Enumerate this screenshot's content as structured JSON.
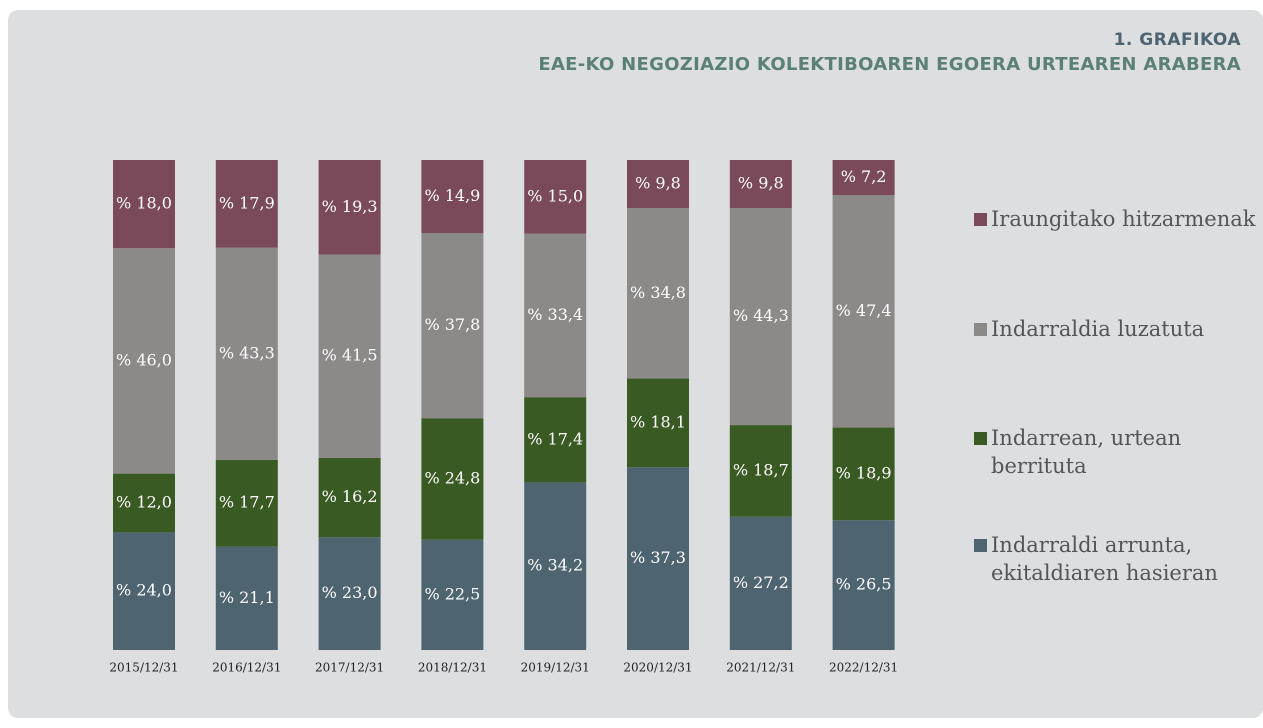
{
  "chart_data": {
    "type": "stacked_bar",
    "title": "1. GRAFIKOA",
    "subtitle": "EAE-KO NEGOZIAZIO KOLEKTIBOAREN EGOERA URTEAREN ARABERA",
    "categories": [
      "2015/12/31",
      "2016/12/31",
      "2017/12/31",
      "2018/12/31",
      "2019/12/31",
      "2020/12/31",
      "2021/12/31",
      "2022/12/31"
    ],
    "ylim": [
      0,
      100
    ],
    "series": [
      {
        "name": "Indarraldi arrunta, ekitaldiaren hasieran",
        "color": "#4e6470",
        "values": [
          24.0,
          21.1,
          23.0,
          22.5,
          34.2,
          37.3,
          27.2,
          26.5
        ],
        "value_labels": [
          "% 24,0",
          "% 21,1",
          "% 23,0",
          "% 22,5",
          "% 34,2",
          "% 37,3",
          "% 27,2",
          "% 26,5"
        ]
      },
      {
        "name": "Indarrean, urtean berrituta",
        "color": "#3a5a24",
        "values": [
          12.0,
          17.7,
          16.2,
          24.8,
          17.4,
          18.1,
          18.7,
          18.9
        ],
        "value_labels": [
          "% 12,0",
          "% 17,7",
          "% 16,2",
          "% 24,8",
          "% 17,4",
          "% 18,1",
          "% 18,7",
          "% 18,9"
        ]
      },
      {
        "name": "Indarraldia luzatuta",
        "color": "#8c8989",
        "values": [
          46.0,
          43.3,
          41.5,
          37.8,
          33.4,
          34.8,
          44.3,
          47.4
        ],
        "value_labels": [
          "% 46,0",
          "% 43,3",
          "% 41,5",
          "% 37,8",
          "% 33,4",
          "% 34,8",
          "% 44,3",
          "% 47,4"
        ]
      },
      {
        "name": "Iraungitako hitzarmenak",
        "color": "#7b4a5a",
        "values": [
          18.0,
          17.9,
          19.3,
          14.9,
          15.0,
          9.8,
          9.8,
          7.2
        ],
        "value_labels": [
          "% 18,0",
          "% 17,9",
          "% 19,3",
          "% 14,9",
          "% 15,0",
          "% 9,8",
          "% 9,8",
          "% 7,2"
        ]
      }
    ]
  }
}
